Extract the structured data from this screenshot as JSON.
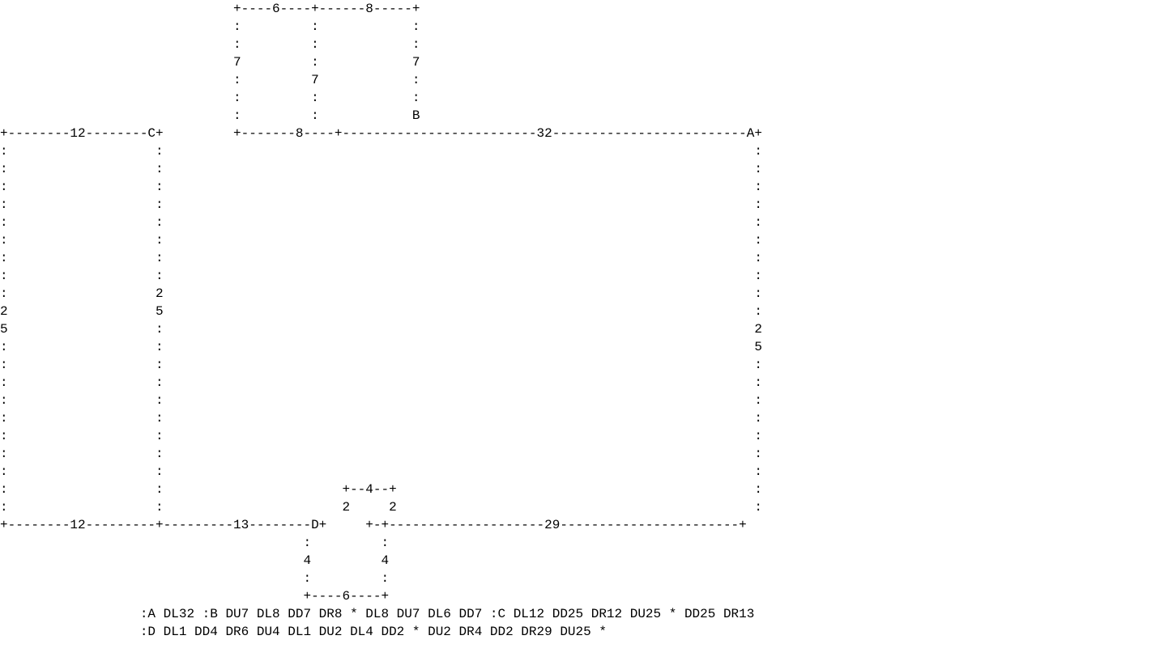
{
  "diagram": {
    "lines": [
      "                              +----6----+------8-----+",
      "                              :         :            :",
      "                              :         :            :",
      "                              7         :            7",
      "                              :         7            :",
      "                              :         :            :",
      "                              :         :            B",
      "+--------12--------C+         +-------8----+-------------------------32-------------------------A+",
      ":                   :                                                                            :",
      ":                   :                                                                            :",
      ":                   :                                                                            :",
      ":                   :                                                                            :",
      ":                   :                                                                            :",
      ":                   :                                                                            :",
      ":                   :                                                                            :",
      ":                   :                                                                            :",
      ":                   2                                                                            :",
      "2                   5                                                                            :",
      "5                   :                                                                            2",
      ":                   :                                                                            5",
      ":                   :                                                                            :",
      ":                   :                                                                            :",
      ":                   :                                                                            :",
      ":                   :                                                                            :",
      ":                   :                                                                            :",
      ":                   :                                                                            :",
      ":                   :                                                                            :",
      ":                   :                       +--4--+                                              :",
      ":                   :                       2     2                                              :",
      "+--------12---------+---------13--------D+     +-+--------------------29-----------------------+",
      "                                       :         :",
      "                                       4         4",
      "                                       :         :",
      "                                       +----6----+",
      "                  :A DL32 :B DU7 DL8 DD7 DR8 * DL8 DU7 DL6 DD7 :C DL12 DD25 DR12 DU25 * DD25 DR13",
      "                  :D DL1 DD4 DR6 DU4 DL1 DU2 DL4 DD2 * DU2 DR4 DD2 DR29 DU25 *"
    ]
  },
  "colors": {
    "text": "#000000",
    "background": "#ffffff"
  }
}
